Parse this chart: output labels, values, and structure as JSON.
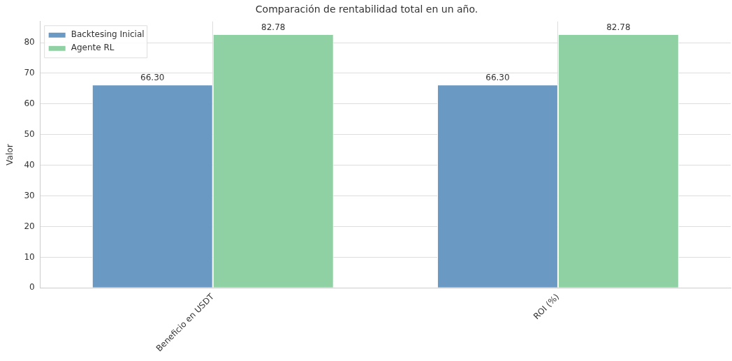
{
  "chart_data": {
    "type": "bar",
    "title": "Comparación de rentabilidad total en un año.",
    "ylabel": "Valor",
    "categories": [
      "Beneficio en USDT",
      "ROI (%)"
    ],
    "series": [
      {
        "name": "Backtesing Inicial",
        "color": "#6a9ac4",
        "values": [
          66.3,
          66.3
        ],
        "value_labels": [
          "66.30",
          "66.30"
        ]
      },
      {
        "name": "Agente RL",
        "color": "#8fd1a2",
        "values": [
          82.78,
          82.78
        ],
        "value_labels": [
          "82.78",
          "82.78"
        ]
      }
    ],
    "ylim": [
      0,
      86.9
    ],
    "yticks": [
      0,
      10,
      20,
      30,
      40,
      50,
      60,
      70,
      80
    ],
    "grid": true,
    "legend": "top left"
  }
}
